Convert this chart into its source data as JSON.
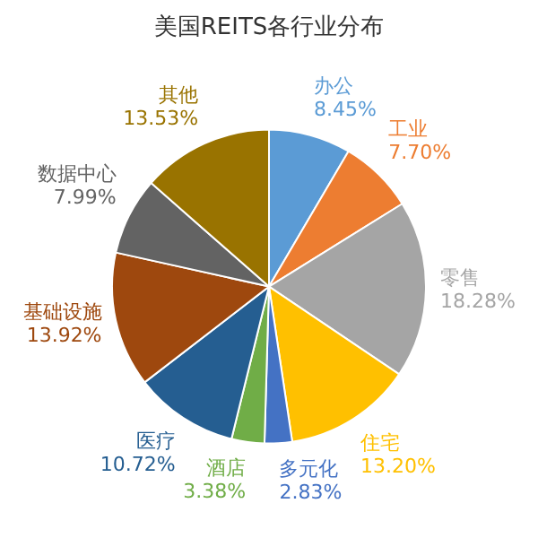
{
  "chart_data": {
    "type": "pie",
    "title": "美国REITS各行业分布",
    "categories": [
      "办公",
      "工业",
      "零售",
      "住宅",
      "多元化",
      "酒店",
      "医疗",
      "基础设施",
      "数据中心",
      "其他"
    ],
    "values": [
      8.45,
      7.7,
      18.28,
      13.2,
      2.83,
      3.38,
      10.72,
      13.92,
      7.99,
      13.53
    ],
    "value_labels": [
      "8.45%",
      "7.70%",
      "18.28%",
      "13.20%",
      "2.83%",
      "3.38%",
      "10.72%",
      "13.92%",
      "7.99%",
      "13.53%"
    ],
    "colors": [
      "#5b9bd5",
      "#ed7d31",
      "#a5a5a5",
      "#ffc000",
      "#4472c4",
      "#70ad47",
      "#255e91",
      "#9e480e",
      "#636363",
      "#997300"
    ],
    "legend": false
  }
}
